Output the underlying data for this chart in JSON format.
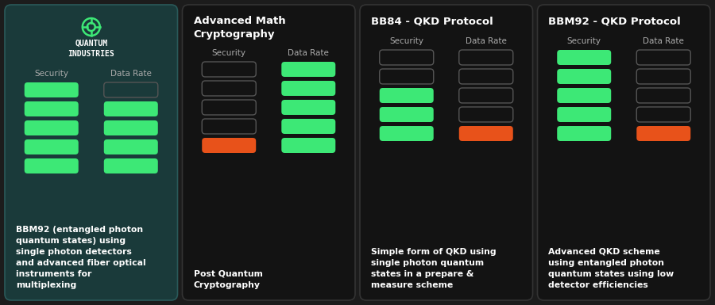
{
  "fig_w": 9.0,
  "fig_h": 3.85,
  "dpi": 100,
  "bg_outer": "#1c1c1c",
  "green": "#3de876",
  "orange": "#e8521a",
  "text_color": "#ffffff",
  "label_color": "#aaaaaa",
  "cards": [
    {
      "title_lines": [
        "QUANTUM",
        "INDUSTRIES"
      ],
      "has_logo": true,
      "bg": "#1a3a3a",
      "border": "#2a5a5a",
      "subtitle": "BBM92 (entangled photon\nquantum states) using\nsingle photon detectors\nand advanced fiber optical\ninstruments for\nmultiplexing",
      "security": [
        1,
        1,
        1,
        1,
        1
      ],
      "data_rate": [
        0,
        1,
        1,
        1,
        1
      ]
    },
    {
      "title_lines": [
        "Advanced Math",
        "Cryptography"
      ],
      "has_logo": false,
      "bg": "#131313",
      "border": "#333333",
      "subtitle": "Post Quantum\nCryptography",
      "security": [
        0,
        0,
        0,
        0,
        2
      ],
      "data_rate": [
        1,
        1,
        1,
        1,
        1
      ]
    },
    {
      "title_lines": [
        "BB84 - QKD Protocol"
      ],
      "has_logo": false,
      "bg": "#131313",
      "border": "#333333",
      "subtitle": "Simple form of QKD using\nsingle photon quantum\nstates in a prepare &\nmeasure scheme",
      "security": [
        0,
        0,
        1,
        1,
        1
      ],
      "data_rate": [
        0,
        0,
        0,
        0,
        2
      ]
    },
    {
      "title_lines": [
        "BBM92 - QKD Protocol"
      ],
      "has_logo": false,
      "bg": "#131313",
      "border": "#333333",
      "subtitle": "Advanced QKD scheme\nusing entangled photon\nquantum states using low\ndetector efficiencies",
      "security": [
        1,
        1,
        1,
        1,
        1
      ],
      "data_rate": [
        0,
        0,
        0,
        0,
        2
      ]
    }
  ]
}
